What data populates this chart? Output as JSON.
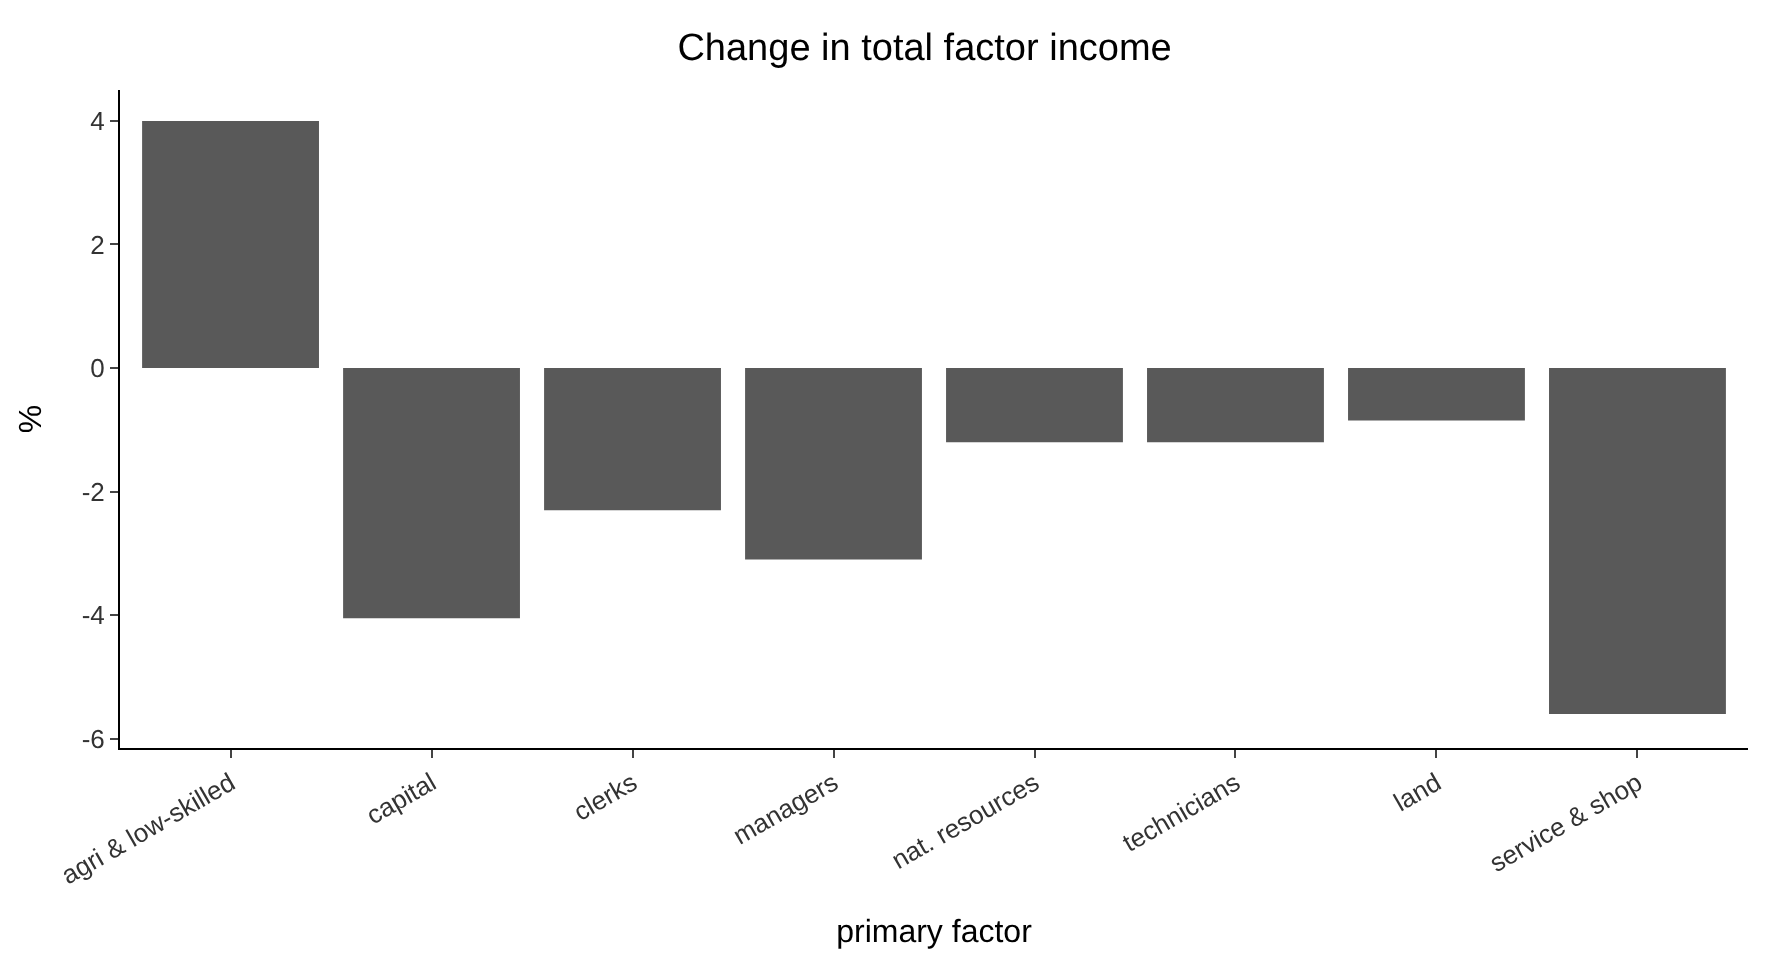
{
  "chart_data": {
    "type": "bar",
    "title": "Change in total factor income",
    "xlabel": "primary factor",
    "ylabel": "%",
    "categories": [
      "agri & low-skilled",
      "capital",
      "clerks",
      "managers",
      "nat. resources",
      "technicians",
      "land",
      "service & shop"
    ],
    "values": [
      4.0,
      -4.05,
      -2.3,
      -3.1,
      -1.2,
      -1.2,
      -0.85,
      -5.6
    ],
    "color": "#595959",
    "ylim": [
      -6.15,
      4.5
    ],
    "yticks": [
      -6,
      -4,
      -2,
      0,
      2,
      4
    ]
  }
}
